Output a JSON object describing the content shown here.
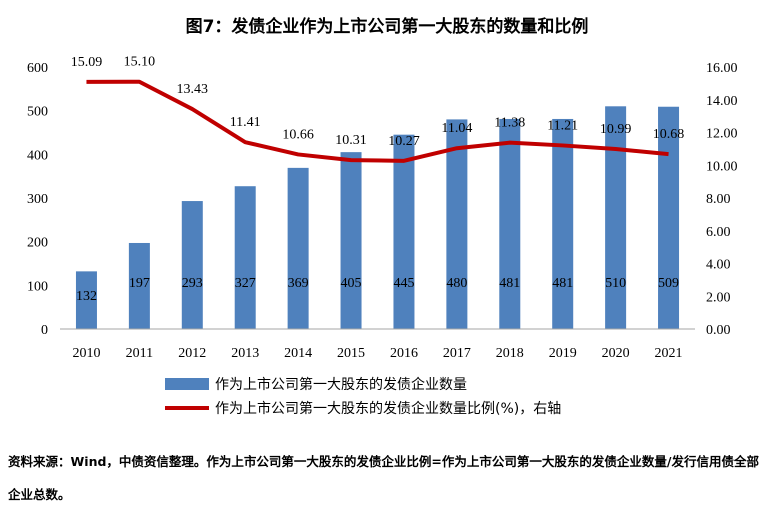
{
  "chart_data": {
    "type": "bar+line",
    "title": "图7：发债企业作为上市公司第一大股东的数量和比例",
    "categories": [
      "2010",
      "2011",
      "2012",
      "2013",
      "2014",
      "2015",
      "2016",
      "2017",
      "2018",
      "2019",
      "2020",
      "2021"
    ],
    "series": [
      {
        "name": "作为上市公司第一大股东的发债企业数量",
        "type": "bar",
        "axis": "left",
        "values": [
          132,
          197,
          293,
          327,
          369,
          405,
          445,
          480,
          481,
          481,
          510,
          509
        ]
      },
      {
        "name": "作为上市公司第一大股东的发债企业数量比例(%)，右轴",
        "type": "line",
        "axis": "right",
        "values": [
          15.09,
          15.1,
          13.43,
          11.41,
          10.66,
          10.31,
          10.27,
          11.04,
          11.38,
          11.21,
          10.99,
          10.68
        ],
        "labels": [
          "15.09",
          "15.10",
          "13.43",
          "11.41",
          "10.66",
          "10.31",
          "10.27",
          "11.04",
          "11.38",
          "11.21",
          "10.99",
          "10.68"
        ]
      }
    ],
    "ylim_left": [
      0,
      600
    ],
    "yticks_left": [
      "0",
      "100",
      "200",
      "300",
      "400",
      "500",
      "600"
    ],
    "ylim_right": [
      0,
      16
    ],
    "yticks_right": [
      "0.00",
      "2.00",
      "4.00",
      "6.00",
      "8.00",
      "10.00",
      "12.00",
      "14.00",
      "16.00"
    ],
    "colors": {
      "bar": "#4f81bd",
      "line": "#c00000"
    },
    "legend_position": "bottom"
  },
  "source_note": "资料来源：Wind，中债资信整理。作为上市公司第一大股东的发债企业比例=作为上市公司第一大股东的发债企业数量/发行信用债全部企业总数。"
}
